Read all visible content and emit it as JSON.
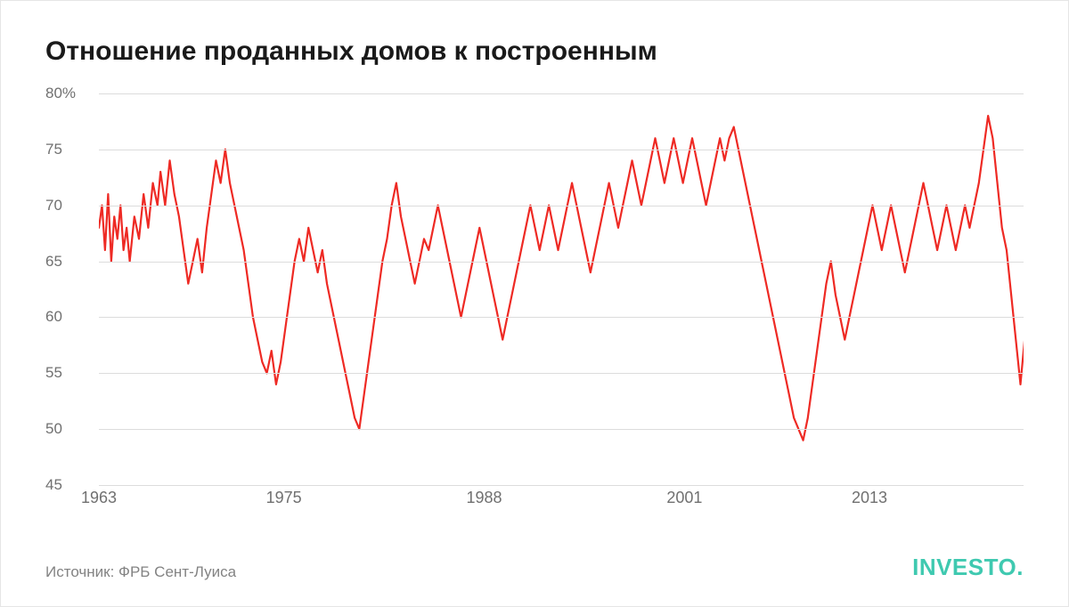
{
  "title": "Отношение проданных домов к построенным",
  "source": "Источник: ФРБ Сент-Луиса",
  "brand": "INVESTO",
  "brand_dot": ".",
  "chart": {
    "type": "line",
    "background_color": "#ffffff",
    "grid_color": "#dcdcdc",
    "axis_label_color": "#707070",
    "title_color": "#1a1a1a",
    "title_fontsize": 30,
    "axis_fontsize": 18,
    "line_color": "#ee2a24",
    "line_width": 2.2,
    "brand_color": "#3fc9b0",
    "ylim": [
      45,
      80
    ],
    "y_ticks": [
      45,
      50,
      55,
      60,
      65,
      70,
      75,
      80
    ],
    "y_tick_labels": [
      "45",
      "50",
      "55",
      "60",
      "65",
      "70",
      "75",
      "80%"
    ],
    "xlim": [
      1963,
      2023
    ],
    "x_ticks": [
      1963,
      1975,
      1988,
      2001,
      2013
    ],
    "x_tick_labels": [
      "1963",
      "1975",
      "1988",
      "2001",
      "2013"
    ],
    "series": [
      {
        "x": 1963.0,
        "y": 68
      },
      {
        "x": 1963.2,
        "y": 70
      },
      {
        "x": 1963.4,
        "y": 66
      },
      {
        "x": 1963.6,
        "y": 71
      },
      {
        "x": 1963.8,
        "y": 65
      },
      {
        "x": 1964.0,
        "y": 69
      },
      {
        "x": 1964.2,
        "y": 67
      },
      {
        "x": 1964.4,
        "y": 70
      },
      {
        "x": 1964.6,
        "y": 66
      },
      {
        "x": 1964.8,
        "y": 68
      },
      {
        "x": 1965.0,
        "y": 65
      },
      {
        "x": 1965.3,
        "y": 69
      },
      {
        "x": 1965.6,
        "y": 67
      },
      {
        "x": 1965.9,
        "y": 71
      },
      {
        "x": 1966.2,
        "y": 68
      },
      {
        "x": 1966.5,
        "y": 72
      },
      {
        "x": 1966.8,
        "y": 70
      },
      {
        "x": 1967.0,
        "y": 73
      },
      {
        "x": 1967.3,
        "y": 70
      },
      {
        "x": 1967.6,
        "y": 74
      },
      {
        "x": 1967.9,
        "y": 71
      },
      {
        "x": 1968.2,
        "y": 69
      },
      {
        "x": 1968.5,
        "y": 66
      },
      {
        "x": 1968.8,
        "y": 63
      },
      {
        "x": 1969.1,
        "y": 65
      },
      {
        "x": 1969.4,
        "y": 67
      },
      {
        "x": 1969.7,
        "y": 64
      },
      {
        "x": 1970.0,
        "y": 68
      },
      {
        "x": 1970.3,
        "y": 71
      },
      {
        "x": 1970.6,
        "y": 74
      },
      {
        "x": 1970.9,
        "y": 72
      },
      {
        "x": 1971.2,
        "y": 75
      },
      {
        "x": 1971.5,
        "y": 72
      },
      {
        "x": 1971.8,
        "y": 70
      },
      {
        "x": 1972.1,
        "y": 68
      },
      {
        "x": 1972.4,
        "y": 66
      },
      {
        "x": 1972.7,
        "y": 63
      },
      {
        "x": 1973.0,
        "y": 60
      },
      {
        "x": 1973.3,
        "y": 58
      },
      {
        "x": 1973.6,
        "y": 56
      },
      {
        "x": 1973.9,
        "y": 55
      },
      {
        "x": 1974.2,
        "y": 57
      },
      {
        "x": 1974.5,
        "y": 54
      },
      {
        "x": 1974.8,
        "y": 56
      },
      {
        "x": 1975.1,
        "y": 59
      },
      {
        "x": 1975.4,
        "y": 62
      },
      {
        "x": 1975.7,
        "y": 65
      },
      {
        "x": 1976.0,
        "y": 67
      },
      {
        "x": 1976.3,
        "y": 65
      },
      {
        "x": 1976.6,
        "y": 68
      },
      {
        "x": 1976.9,
        "y": 66
      },
      {
        "x": 1977.2,
        "y": 64
      },
      {
        "x": 1977.5,
        "y": 66
      },
      {
        "x": 1977.8,
        "y": 63
      },
      {
        "x": 1978.1,
        "y": 61
      },
      {
        "x": 1978.4,
        "y": 59
      },
      {
        "x": 1978.7,
        "y": 57
      },
      {
        "x": 1979.0,
        "y": 55
      },
      {
        "x": 1979.3,
        "y": 53
      },
      {
        "x": 1979.6,
        "y": 51
      },
      {
        "x": 1979.9,
        "y": 50
      },
      {
        "x": 1980.2,
        "y": 53
      },
      {
        "x": 1980.5,
        "y": 56
      },
      {
        "x": 1980.8,
        "y": 59
      },
      {
        "x": 1981.1,
        "y": 62
      },
      {
        "x": 1981.4,
        "y": 65
      },
      {
        "x": 1981.7,
        "y": 67
      },
      {
        "x": 1982.0,
        "y": 70
      },
      {
        "x": 1982.3,
        "y": 72
      },
      {
        "x": 1982.6,
        "y": 69
      },
      {
        "x": 1982.9,
        "y": 67
      },
      {
        "x": 1983.2,
        "y": 65
      },
      {
        "x": 1983.5,
        "y": 63
      },
      {
        "x": 1983.8,
        "y": 65
      },
      {
        "x": 1984.1,
        "y": 67
      },
      {
        "x": 1984.4,
        "y": 66
      },
      {
        "x": 1984.7,
        "y": 68
      },
      {
        "x": 1985.0,
        "y": 70
      },
      {
        "x": 1985.3,
        "y": 68
      },
      {
        "x": 1985.6,
        "y": 66
      },
      {
        "x": 1985.9,
        "y": 64
      },
      {
        "x": 1986.2,
        "y": 62
      },
      {
        "x": 1986.5,
        "y": 60
      },
      {
        "x": 1986.8,
        "y": 62
      },
      {
        "x": 1987.1,
        "y": 64
      },
      {
        "x": 1987.4,
        "y": 66
      },
      {
        "x": 1987.7,
        "y": 68
      },
      {
        "x": 1988.0,
        "y": 66
      },
      {
        "x": 1988.3,
        "y": 64
      },
      {
        "x": 1988.6,
        "y": 62
      },
      {
        "x": 1988.9,
        "y": 60
      },
      {
        "x": 1989.2,
        "y": 58
      },
      {
        "x": 1989.5,
        "y": 60
      },
      {
        "x": 1989.8,
        "y": 62
      },
      {
        "x": 1990.1,
        "y": 64
      },
      {
        "x": 1990.4,
        "y": 66
      },
      {
        "x": 1990.7,
        "y": 68
      },
      {
        "x": 1991.0,
        "y": 70
      },
      {
        "x": 1991.3,
        "y": 68
      },
      {
        "x": 1991.6,
        "y": 66
      },
      {
        "x": 1991.9,
        "y": 68
      },
      {
        "x": 1992.2,
        "y": 70
      },
      {
        "x": 1992.5,
        "y": 68
      },
      {
        "x": 1992.8,
        "y": 66
      },
      {
        "x": 1993.1,
        "y": 68
      },
      {
        "x": 1993.4,
        "y": 70
      },
      {
        "x": 1993.7,
        "y": 72
      },
      {
        "x": 1994.0,
        "y": 70
      },
      {
        "x": 1994.3,
        "y": 68
      },
      {
        "x": 1994.6,
        "y": 66
      },
      {
        "x": 1994.9,
        "y": 64
      },
      {
        "x": 1995.2,
        "y": 66
      },
      {
        "x": 1995.5,
        "y": 68
      },
      {
        "x": 1995.8,
        "y": 70
      },
      {
        "x": 1996.1,
        "y": 72
      },
      {
        "x": 1996.4,
        "y": 70
      },
      {
        "x": 1996.7,
        "y": 68
      },
      {
        "x": 1997.0,
        "y": 70
      },
      {
        "x": 1997.3,
        "y": 72
      },
      {
        "x": 1997.6,
        "y": 74
      },
      {
        "x": 1997.9,
        "y": 72
      },
      {
        "x": 1998.2,
        "y": 70
      },
      {
        "x": 1998.5,
        "y": 72
      },
      {
        "x": 1998.8,
        "y": 74
      },
      {
        "x": 1999.1,
        "y": 76
      },
      {
        "x": 1999.4,
        "y": 74
      },
      {
        "x": 1999.7,
        "y": 72
      },
      {
        "x": 2000.0,
        "y": 74
      },
      {
        "x": 2000.3,
        "y": 76
      },
      {
        "x": 2000.6,
        "y": 74
      },
      {
        "x": 2000.9,
        "y": 72
      },
      {
        "x": 2001.2,
        "y": 74
      },
      {
        "x": 2001.5,
        "y": 76
      },
      {
        "x": 2001.8,
        "y": 74
      },
      {
        "x": 2002.1,
        "y": 72
      },
      {
        "x": 2002.4,
        "y": 70
      },
      {
        "x": 2002.7,
        "y": 72
      },
      {
        "x": 2003.0,
        "y": 74
      },
      {
        "x": 2003.3,
        "y": 76
      },
      {
        "x": 2003.6,
        "y": 74
      },
      {
        "x": 2003.9,
        "y": 76
      },
      {
        "x": 2004.2,
        "y": 77
      },
      {
        "x": 2004.5,
        "y": 75
      },
      {
        "x": 2004.8,
        "y": 73
      },
      {
        "x": 2005.1,
        "y": 71
      },
      {
        "x": 2005.4,
        "y": 69
      },
      {
        "x": 2005.7,
        "y": 67
      },
      {
        "x": 2006.0,
        "y": 65
      },
      {
        "x": 2006.3,
        "y": 63
      },
      {
        "x": 2006.6,
        "y": 61
      },
      {
        "x": 2006.9,
        "y": 59
      },
      {
        "x": 2007.2,
        "y": 57
      },
      {
        "x": 2007.5,
        "y": 55
      },
      {
        "x": 2007.8,
        "y": 53
      },
      {
        "x": 2008.1,
        "y": 51
      },
      {
        "x": 2008.4,
        "y": 50
      },
      {
        "x": 2008.7,
        "y": 49
      },
      {
        "x": 2009.0,
        "y": 51
      },
      {
        "x": 2009.3,
        "y": 54
      },
      {
        "x": 2009.6,
        "y": 57
      },
      {
        "x": 2009.9,
        "y": 60
      },
      {
        "x": 2010.2,
        "y": 63
      },
      {
        "x": 2010.5,
        "y": 65
      },
      {
        "x": 2010.8,
        "y": 62
      },
      {
        "x": 2011.1,
        "y": 60
      },
      {
        "x": 2011.4,
        "y": 58
      },
      {
        "x": 2011.7,
        "y": 60
      },
      {
        "x": 2012.0,
        "y": 62
      },
      {
        "x": 2012.3,
        "y": 64
      },
      {
        "x": 2012.6,
        "y": 66
      },
      {
        "x": 2012.9,
        "y": 68
      },
      {
        "x": 2013.2,
        "y": 70
      },
      {
        "x": 2013.5,
        "y": 68
      },
      {
        "x": 2013.8,
        "y": 66
      },
      {
        "x": 2014.1,
        "y": 68
      },
      {
        "x": 2014.4,
        "y": 70
      },
      {
        "x": 2014.7,
        "y": 68
      },
      {
        "x": 2015.0,
        "y": 66
      },
      {
        "x": 2015.3,
        "y": 64
      },
      {
        "x": 2015.6,
        "y": 66
      },
      {
        "x": 2015.9,
        "y": 68
      },
      {
        "x": 2016.2,
        "y": 70
      },
      {
        "x": 2016.5,
        "y": 72
      },
      {
        "x": 2016.8,
        "y": 70
      },
      {
        "x": 2017.1,
        "y": 68
      },
      {
        "x": 2017.4,
        "y": 66
      },
      {
        "x": 2017.7,
        "y": 68
      },
      {
        "x": 2018.0,
        "y": 70
      },
      {
        "x": 2018.3,
        "y": 68
      },
      {
        "x": 2018.6,
        "y": 66
      },
      {
        "x": 2018.9,
        "y": 68
      },
      {
        "x": 2019.2,
        "y": 70
      },
      {
        "x": 2019.5,
        "y": 68
      },
      {
        "x": 2019.8,
        "y": 70
      },
      {
        "x": 2020.1,
        "y": 72
      },
      {
        "x": 2020.4,
        "y": 75
      },
      {
        "x": 2020.7,
        "y": 78
      },
      {
        "x": 2021.0,
        "y": 76
      },
      {
        "x": 2021.3,
        "y": 72
      },
      {
        "x": 2021.6,
        "y": 68
      },
      {
        "x": 2021.9,
        "y": 66
      },
      {
        "x": 2022.2,
        "y": 62
      },
      {
        "x": 2022.5,
        "y": 58
      },
      {
        "x": 2022.8,
        "y": 54
      },
      {
        "x": 2023.0,
        "y": 57
      },
      {
        "x": 2023.2,
        "y": 60
      }
    ]
  }
}
